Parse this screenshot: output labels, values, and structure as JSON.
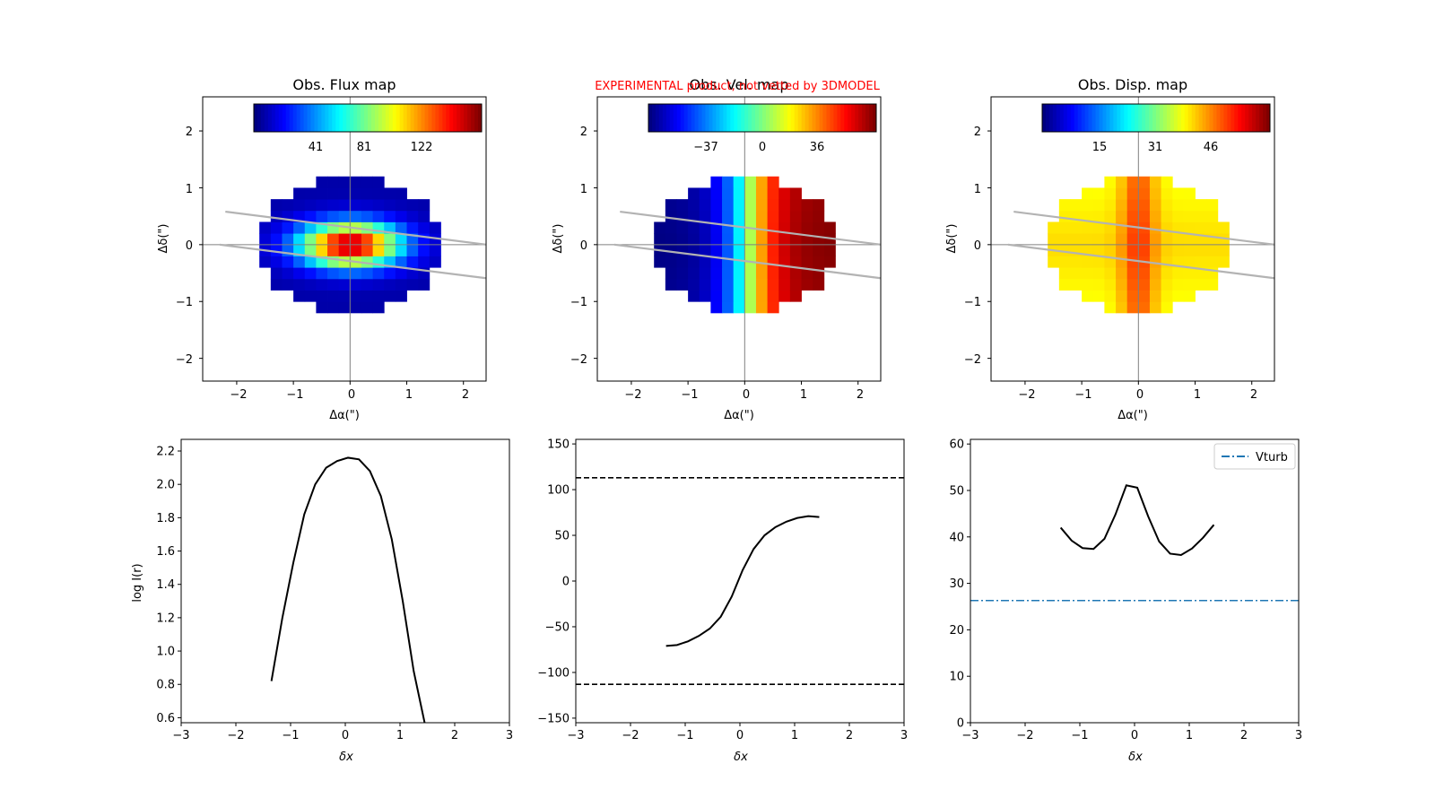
{
  "watermark": "EXPERIMENTAL product, not vetted by 3DMODEL",
  "colors": {
    "profile_line": "#000000",
    "slit_line": "#b3b3b3",
    "crosshair": "#808080",
    "vturb_line": "#1f77b4"
  },
  "maps": [
    {
      "title": "Obs. Flux map",
      "colormap": "jet",
      "cbar_ticks": [
        "41",
        "81",
        "122"
      ],
      "xlabel": "Δα(\")",
      "ylabel": "Δδ(\")",
      "xticks": [
        "−2",
        "−1",
        "0",
        "1",
        "2"
      ],
      "yticks": [
        "−2",
        "−1",
        "0",
        "1",
        "2"
      ]
    },
    {
      "title": "Obs. Vel. map",
      "colormap": "jet",
      "cbar_ticks": [
        "−37",
        "0",
        "36"
      ],
      "xlabel": "Δα(\")",
      "ylabel": "Δδ(\")",
      "xticks": [
        "−2",
        "−1",
        "0",
        "1",
        "2"
      ],
      "yticks": [
        "−2",
        "−1",
        "0",
        "1",
        "2"
      ]
    },
    {
      "title": "Obs. Disp. map",
      "colormap": "jet",
      "cbar_ticks": [
        "15",
        "31",
        "46"
      ],
      "xlabel": "Δα(\")",
      "ylabel": "Δδ(\")",
      "xticks": [
        "−2",
        "−1",
        "0",
        "1",
        "2"
      ],
      "yticks": [
        "−2",
        "−1",
        "0",
        "1",
        "2"
      ]
    }
  ],
  "chart_data": [
    {
      "type": "heatmap",
      "title": "Obs. Flux map",
      "xlabel": "Δα(\")",
      "ylabel": "Δδ(\")",
      "xlim": [
        -2.6,
        2.4
      ],
      "ylim": [
        -2.4,
        2.6
      ],
      "grid": false,
      "pixel_scale_arcsec": 0.2,
      "colorbar_ticks": [
        41,
        81,
        122
      ],
      "colorbar_range": [
        0,
        162
      ],
      "model": "centrally peaked flux, elongated along the slit, over an elliptical footprint"
    },
    {
      "type": "heatmap",
      "title": "Obs. Vel. map",
      "xlabel": "Δα(\")",
      "ylabel": "Δδ(\")",
      "xlim": [
        -2.6,
        2.4
      ],
      "ylim": [
        -2.4,
        2.6
      ],
      "grid": false,
      "pixel_scale_arcsec": 0.2,
      "colorbar_ticks": [
        -37,
        0,
        36
      ],
      "colorbar_range": [
        -72,
        72
      ],
      "model": "velocity rising from west (−) to east (+) across the same footprint"
    },
    {
      "type": "heatmap",
      "title": "Obs. Disp. map",
      "xlabel": "Δα(\")",
      "ylabel": "Δδ(\")",
      "xlim": [
        -2.6,
        2.4
      ],
      "ylim": [
        -2.4,
        2.6
      ],
      "grid": false,
      "pixel_scale_arcsec": 0.2,
      "colorbar_ticks": [
        15,
        31,
        46
      ],
      "colorbar_range": [
        0,
        62
      ],
      "model": "dispersion peaked along the minor axis (x≈0), lower on both sides"
    },
    {
      "type": "line",
      "xlabel": "δx",
      "ylabel": "log I(r)",
      "xlim": [
        -3,
        3
      ],
      "ylim": [
        0.57,
        2.27
      ],
      "xticks": [
        "−3",
        "−2",
        "−1",
        "0",
        "1",
        "2",
        "3"
      ],
      "yticks": [
        "0.6",
        "0.8",
        "1.0",
        "1.2",
        "1.4",
        "1.6",
        "1.8",
        "2.0",
        "2.2"
      ],
      "series": [
        {
          "x": [
            -1.35,
            -1.15,
            -0.95,
            -0.75,
            -0.55,
            -0.35,
            -0.15,
            0.05,
            0.25,
            0.45,
            0.65,
            0.85,
            1.05,
            1.25,
            1.45
          ],
          "values": [
            0.82,
            1.2,
            1.53,
            1.82,
            2.0,
            2.1,
            2.14,
            2.16,
            2.15,
            2.08,
            1.93,
            1.67,
            1.3,
            0.88,
            0.57
          ]
        }
      ]
    },
    {
      "type": "line",
      "xlabel": "δx",
      "ylabel": "",
      "xlim": [
        -3,
        3
      ],
      "ylim": [
        -155,
        155
      ],
      "xticks": [
        "−3",
        "−2",
        "−1",
        "0",
        "1",
        "2",
        "3"
      ],
      "yticks": [
        "−150",
        "−100",
        "−50",
        "0",
        "50",
        "100",
        "150"
      ],
      "series": [
        {
          "x": [
            -1.35,
            -1.15,
            -0.95,
            -0.75,
            -0.55,
            -0.35,
            -0.15,
            0.05,
            0.25,
            0.45,
            0.65,
            0.85,
            1.05,
            1.25,
            1.45
          ],
          "values": [
            -71,
            -70,
            -66,
            -60,
            -52,
            -39,
            -17,
            12,
            35,
            50,
            59,
            65,
            69,
            71,
            70
          ]
        }
      ],
      "hlines": [
        113,
        -113
      ]
    },
    {
      "type": "line",
      "xlabel": "δx",
      "ylabel": "",
      "xlim": [
        -3,
        3
      ],
      "ylim": [
        0,
        61
      ],
      "xticks": [
        "−3",
        "−2",
        "−1",
        "0",
        "1",
        "2",
        "3"
      ],
      "yticks": [
        "0",
        "10",
        "20",
        "30",
        "40",
        "50",
        "60"
      ],
      "legend": "top-right",
      "series": [
        {
          "x": [
            -1.35,
            -1.15,
            -0.95,
            -0.75,
            -0.55,
            -0.35,
            -0.15,
            0.05,
            0.25,
            0.45,
            0.65,
            0.85,
            1.05,
            1.25,
            1.45
          ],
          "values": [
            42,
            39.2,
            37.6,
            37.4,
            39.6,
            44.8,
            51.1,
            50.6,
            44.4,
            39,
            36.4,
            36.1,
            37.5,
            39.8,
            42.6
          ]
        },
        {
          "name": "Vturb",
          "style": "dash-dot",
          "constant": 26.3
        }
      ]
    }
  ]
}
